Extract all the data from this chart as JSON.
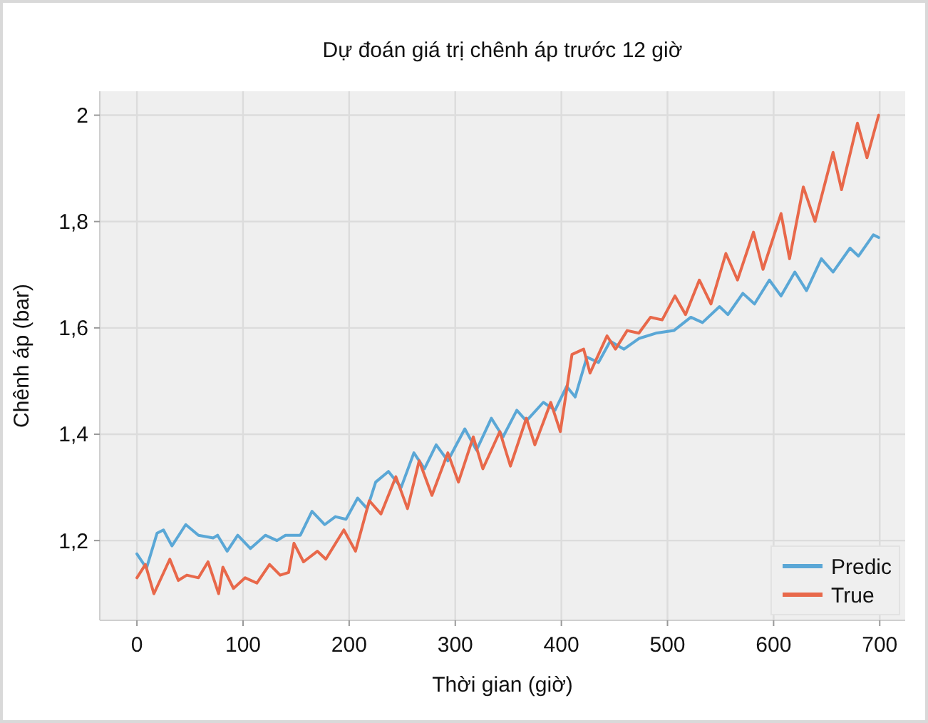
{
  "chart_data": {
    "type": "line",
    "title": "Dự đoán giá trị chênh áp trước 12 giờ",
    "xlabel": "Thời gian (giờ)",
    "ylabel": "Chênh áp (bar)",
    "xlim": [
      -35,
      724
    ],
    "ylim": [
      1.05,
      2.045
    ],
    "xticks": [
      0,
      100,
      200,
      300,
      400,
      500,
      600,
      700
    ],
    "yticks": [
      {
        "value": 1.2,
        "label": "1,2"
      },
      {
        "value": 1.4,
        "label": "1,4"
      },
      {
        "value": 1.6,
        "label": "1,6"
      },
      {
        "value": 1.8,
        "label": "1,8"
      },
      2
    ],
    "grid": true,
    "legend": "bottom right",
    "line_style": "solid",
    "series": [
      {
        "name": "Predic",
        "color": "#5aa7d6",
        "x": [
          0,
          9,
          19,
          25,
          33,
          46,
          58,
          72,
          76,
          85,
          95,
          107,
          121,
          132,
          140,
          154,
          165,
          177,
          187,
          197,
          208,
          217,
          225,
          237,
          249,
          261,
          271,
          282,
          293,
          309,
          320,
          334,
          345,
          358,
          367,
          383,
          394,
          405,
          413,
          424,
          435,
          446,
          459,
          473,
          489,
          506,
          522,
          533,
          549,
          557,
          571,
          582,
          596,
          607,
          620,
          631,
          645,
          656,
          672,
          680,
          694,
          699
        ],
        "values": [
          1.175,
          1.148,
          1.214,
          1.22,
          1.19,
          1.23,
          1.21,
          1.205,
          1.21,
          1.18,
          1.21,
          1.185,
          1.21,
          1.2,
          1.21,
          1.21,
          1.255,
          1.23,
          1.245,
          1.24,
          1.28,
          1.26,
          1.31,
          1.33,
          1.3,
          1.365,
          1.335,
          1.38,
          1.35,
          1.41,
          1.37,
          1.43,
          1.395,
          1.445,
          1.425,
          1.46,
          1.445,
          1.49,
          1.47,
          1.545,
          1.535,
          1.575,
          1.56,
          1.58,
          1.59,
          1.595,
          1.62,
          1.61,
          1.64,
          1.625,
          1.665,
          1.645,
          1.69,
          1.66,
          1.705,
          1.67,
          1.73,
          1.705,
          1.75,
          1.735,
          1.775,
          1.77
        ]
      },
      {
        "name": "True",
        "color": "#e8684a",
        "x": [
          0,
          8,
          16,
          31,
          39,
          47,
          58,
          67,
          77,
          81,
          91,
          102,
          113,
          125,
          135,
          143,
          148,
          157,
          170,
          178,
          195,
          206,
          219,
          230,
          244,
          255,
          266,
          278,
          293,
          303,
          317,
          326,
          342,
          352,
          367,
          375,
          390,
          399,
          410,
          421,
          427,
          443,
          451,
          462,
          473,
          484,
          495,
          507,
          517,
          530,
          541,
          555,
          566,
          581,
          590,
          607,
          615,
          628,
          639,
          656,
          664,
          679,
          688,
          699
        ],
        "values": [
          1.13,
          1.155,
          1.1,
          1.165,
          1.125,
          1.135,
          1.13,
          1.16,
          1.1,
          1.15,
          1.11,
          1.13,
          1.12,
          1.155,
          1.135,
          1.14,
          1.195,
          1.16,
          1.18,
          1.165,
          1.22,
          1.18,
          1.275,
          1.25,
          1.32,
          1.26,
          1.35,
          1.285,
          1.365,
          1.31,
          1.395,
          1.335,
          1.405,
          1.34,
          1.43,
          1.38,
          1.46,
          1.405,
          1.55,
          1.56,
          1.515,
          1.585,
          1.56,
          1.595,
          1.59,
          1.62,
          1.615,
          1.66,
          1.625,
          1.69,
          1.645,
          1.74,
          1.69,
          1.78,
          1.71,
          1.815,
          1.73,
          1.865,
          1.8,
          1.93,
          1.86,
          1.985,
          1.92,
          2.0
        ]
      }
    ]
  }
}
